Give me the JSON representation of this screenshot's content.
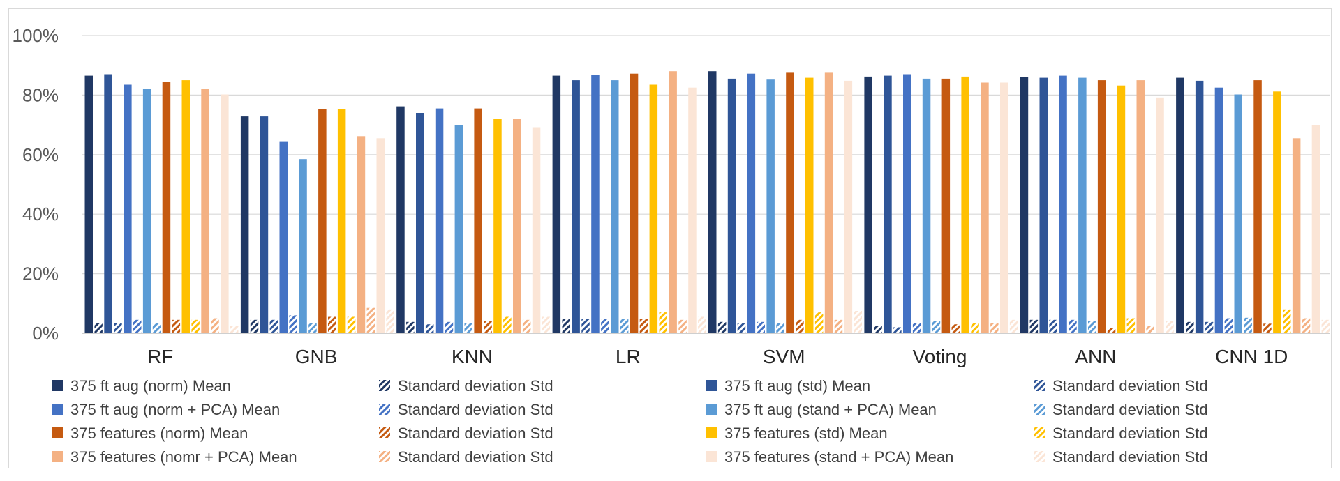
{
  "chart_data": {
    "type": "bar",
    "categories": [
      "RF",
      "GNB",
      "KNN",
      "LR",
      "SVM",
      "Voting",
      "ANN",
      "CNN 1D"
    ],
    "y_ticks": [
      "0%",
      "20%",
      "40%",
      "60%",
      "80%",
      "100%"
    ],
    "ylim": [
      0,
      100
    ],
    "grid": true,
    "legend_position": "bottom",
    "series": [
      {
        "name": "375 ft aug (norm) Mean",
        "color": "#203864",
        "hatched": false,
        "values": [
          86.5,
          72.8,
          76.2,
          86.5,
          88.0,
          86.2,
          86.0,
          85.8
        ]
      },
      {
        "name": "Standard deviation Std",
        "color": "#203864",
        "hatched": true,
        "values": [
          3.5,
          4.5,
          3.8,
          4.8,
          3.8,
          2.5,
          4.5,
          3.8
        ]
      },
      {
        "name": "375 ft aug  (std) Mean",
        "color": "#2F5597",
        "hatched": false,
        "values": [
          87.0,
          72.8,
          74.0,
          85.0,
          85.5,
          86.5,
          85.8,
          84.8
        ]
      },
      {
        "name": "Standard deviation Std",
        "color": "#2F5597",
        "hatched": true,
        "values": [
          3.5,
          4.5,
          3.0,
          4.8,
          3.5,
          2.0,
          4.5,
          3.8
        ]
      },
      {
        "name": "375 ft aug  (norm + PCA) Mean",
        "color": "#4472C4",
        "hatched": false,
        "values": [
          83.5,
          64.5,
          75.5,
          86.8,
          87.2,
          87.0,
          86.5,
          82.5
        ]
      },
      {
        "name": "Standard deviation Std",
        "color": "#4472C4",
        "hatched": true,
        "values": [
          4.5,
          6.0,
          3.8,
          4.8,
          3.8,
          3.5,
          4.5,
          5.0
        ]
      },
      {
        "name": "375 ft aug  (stand + PCA) Mean",
        "color": "#5B9BD5",
        "hatched": false,
        "values": [
          82.0,
          58.5,
          70.0,
          85.0,
          85.2,
          85.5,
          85.8,
          80.2
        ]
      },
      {
        "name": "Standard deviation Std",
        "color": "#5B9BD5",
        "hatched": true,
        "values": [
          3.5,
          3.5,
          3.5,
          4.8,
          3.5,
          4.0,
          4.0,
          5.2
        ]
      },
      {
        "name": "375 features  (norm) Mean",
        "color": "#C55A11",
        "hatched": false,
        "values": [
          84.5,
          75.2,
          75.5,
          87.2,
          87.5,
          85.5,
          85.0,
          85.0
        ]
      },
      {
        "name": "Standard deviation Std",
        "color": "#C55A11",
        "hatched": true,
        "values": [
          4.5,
          5.5,
          4.0,
          4.8,
          4.5,
          3.0,
          1.8,
          3.2
        ]
      },
      {
        "name": "375 features  (std) Mean",
        "color": "#FFC000",
        "hatched": false,
        "values": [
          85.0,
          75.2,
          72.0,
          83.5,
          85.8,
          86.2,
          83.2,
          81.2
        ]
      },
      {
        "name": "Standard deviation Std",
        "color": "#FFC000",
        "hatched": true,
        "values": [
          4.5,
          5.5,
          5.5,
          7.0,
          7.0,
          3.5,
          5.0,
          8.0
        ]
      },
      {
        "name": "375 features (nomr + PCA) Mean",
        "color": "#F4B183",
        "hatched": false,
        "values": [
          82.0,
          66.2,
          72.0,
          88.0,
          87.5,
          84.2,
          85.0,
          65.5
        ]
      },
      {
        "name": "Standard deviation Std",
        "color": "#F4B183",
        "hatched": true,
        "values": [
          5.0,
          8.5,
          4.5,
          4.5,
          4.5,
          3.5,
          2.5,
          5.0
        ]
      },
      {
        "name": "375 features (stand + PCA) Mean",
        "color": "#FBE5D6",
        "hatched": false,
        "values": [
          80.2,
          65.5,
          69.2,
          82.5,
          84.8,
          84.2,
          79.2,
          70.0
        ]
      },
      {
        "name": "Standard deviation Std",
        "color": "#FBE5D6",
        "hatched": true,
        "values": [
          2.5,
          8.0,
          5.5,
          5.5,
          7.5,
          4.5,
          4.0,
          4.5
        ]
      }
    ]
  }
}
